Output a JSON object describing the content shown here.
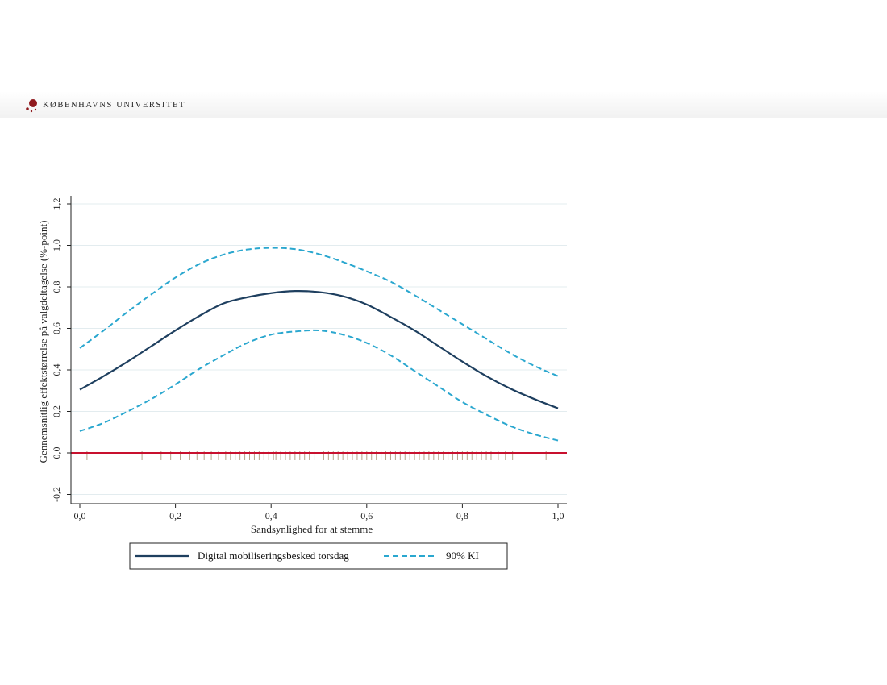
{
  "header": {
    "university_name": "KØBENHAVNS UNIVERSITET",
    "logo_icon": "university-crown-dots-icon",
    "brand_color": "#901a1e"
  },
  "chart_data": {
    "type": "line",
    "title": "",
    "xlabel": "Sandsynlighed for at stemme",
    "ylabel": "Gennemsnitlig effektstørrelse på valgdeltagelse (%-point)",
    "xlim": [
      0,
      1
    ],
    "ylim": [
      -0.2,
      1.2
    ],
    "xticks": [
      {
        "value": 0.0,
        "label": "0,0"
      },
      {
        "value": 0.2,
        "label": "0,2"
      },
      {
        "value": 0.4,
        "label": "0,4"
      },
      {
        "value": 0.6,
        "label": "0,6"
      },
      {
        "value": 0.8,
        "label": "0,8"
      },
      {
        "value": 1.0,
        "label": "1,0"
      }
    ],
    "yticks": [
      {
        "value": -0.2,
        "label": "-0,2"
      },
      {
        "value": 0.0,
        "label": "0,0"
      },
      {
        "value": 0.2,
        "label": "0,2"
      },
      {
        "value": 0.4,
        "label": "0,4"
      },
      {
        "value": 0.6,
        "label": "0,6"
      },
      {
        "value": 0.8,
        "label": "0,8"
      },
      {
        "value": 1.0,
        "label": "1,0"
      },
      {
        "value": 1.2,
        "label": "1,2"
      }
    ],
    "grid": "horizontal",
    "reference_line": {
      "y": 0,
      "color": "#c8102e"
    },
    "legend_placement": "bottom",
    "x": [
      0.0,
      0.05,
      0.1,
      0.15,
      0.2,
      0.25,
      0.3,
      0.35,
      0.4,
      0.45,
      0.5,
      0.55,
      0.6,
      0.65,
      0.7,
      0.75,
      0.8,
      0.85,
      0.9,
      0.95,
      1.0
    ],
    "series": [
      {
        "name": "Digital mobiliseringsbesked torsdag",
        "style": "solid",
        "color": "#1e3f5f",
        "values": [
          0.305,
          0.37,
          0.44,
          0.515,
          0.59,
          0.66,
          0.72,
          0.75,
          0.77,
          0.78,
          0.775,
          0.755,
          0.715,
          0.655,
          0.59,
          0.515,
          0.44,
          0.37,
          0.31,
          0.26,
          0.215
        ]
      },
      {
        "name": "90% KI",
        "style": "dashed",
        "color": "#2aa7cf",
        "values": [
          0.505,
          0.59,
          0.68,
          0.765,
          0.845,
          0.91,
          0.955,
          0.98,
          0.988,
          0.982,
          0.958,
          0.92,
          0.875,
          0.825,
          0.76,
          0.69,
          0.62,
          0.55,
          0.48,
          0.42,
          0.37
        ]
      },
      {
        "style": "dashed",
        "color": "#2aa7cf",
        "values": [
          0.105,
          0.145,
          0.2,
          0.26,
          0.33,
          0.405,
          0.47,
          0.53,
          0.57,
          0.585,
          0.59,
          0.57,
          0.53,
          0.47,
          0.395,
          0.32,
          0.245,
          0.185,
          0.13,
          0.09,
          0.06
        ]
      }
    ],
    "rug": {
      "color": "#b5a28a",
      "x": [
        0.015,
        0.13,
        0.17,
        0.19,
        0.21,
        0.23,
        0.245,
        0.26,
        0.275,
        0.29,
        0.305,
        0.315,
        0.325,
        0.335,
        0.345,
        0.355,
        0.365,
        0.375,
        0.385,
        0.395,
        0.405,
        0.41,
        0.42,
        0.43,
        0.44,
        0.45,
        0.46,
        0.47,
        0.48,
        0.49,
        0.5,
        0.51,
        0.52,
        0.53,
        0.54,
        0.55,
        0.56,
        0.57,
        0.58,
        0.59,
        0.6,
        0.61,
        0.62,
        0.63,
        0.64,
        0.65,
        0.66,
        0.67,
        0.68,
        0.69,
        0.7,
        0.71,
        0.72,
        0.73,
        0.74,
        0.75,
        0.76,
        0.77,
        0.78,
        0.79,
        0.8,
        0.81,
        0.82,
        0.83,
        0.84,
        0.85,
        0.86,
        0.875,
        0.89,
        0.905,
        0.975
      ]
    }
  }
}
